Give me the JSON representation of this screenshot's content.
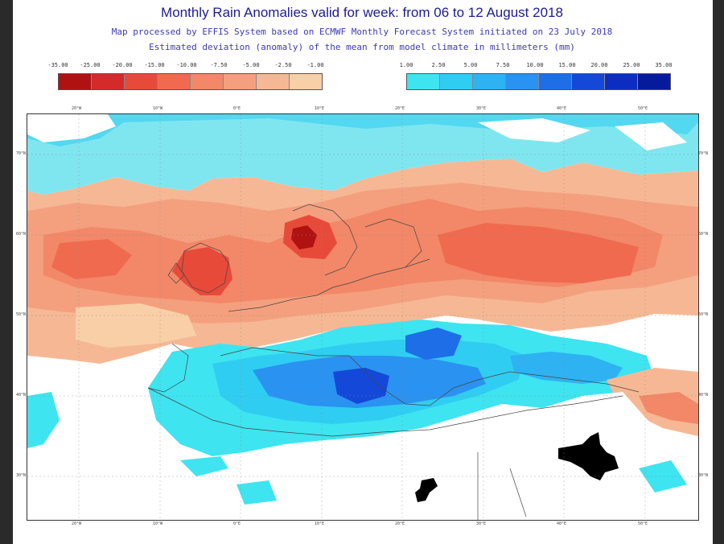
{
  "header": {
    "title": "Monthly Rain Anomalies valid for week: from 06 to 12 August 2018",
    "subtitle1": "Map processed by EFFIS System based on ECMWF Monthly Forecast System initiated on 23 July 2018",
    "subtitle2": "Estimated deviation (anomaly) of the mean from model climate in millimeters (mm)"
  },
  "legend_negative": {
    "labels": [
      "-35.00",
      "-25.00",
      "-20.00",
      "-15.00",
      "-10.00",
      "-7.50",
      "-5.00",
      "-2.50",
      "-1.00"
    ],
    "colors": [
      "#b01212",
      "#d42a2a",
      "#e84a3a",
      "#f06a50",
      "#f28868",
      "#f4a07e",
      "#f6b894",
      "#f9cfa8"
    ]
  },
  "legend_positive": {
    "labels": [
      "1.00",
      "2.50",
      "5.00",
      "7.50",
      "10.00",
      "15.00",
      "20.00",
      "25.00",
      "35.00"
    ],
    "colors": [
      "#3ee4f0",
      "#30cdf2",
      "#2eb2f2",
      "#2a92f0",
      "#1e6ee8",
      "#1448d8",
      "#0c2ec0",
      "#061a9c"
    ]
  },
  "map": {
    "lon_labels": [
      "20°W",
      "10°W",
      "0°E",
      "10°E",
      "20°E",
      "30°E",
      "40°E",
      "50°E"
    ],
    "lat_labels": [
      "70°N",
      "60°N",
      "50°N",
      "40°N",
      "30°N"
    ]
  }
}
